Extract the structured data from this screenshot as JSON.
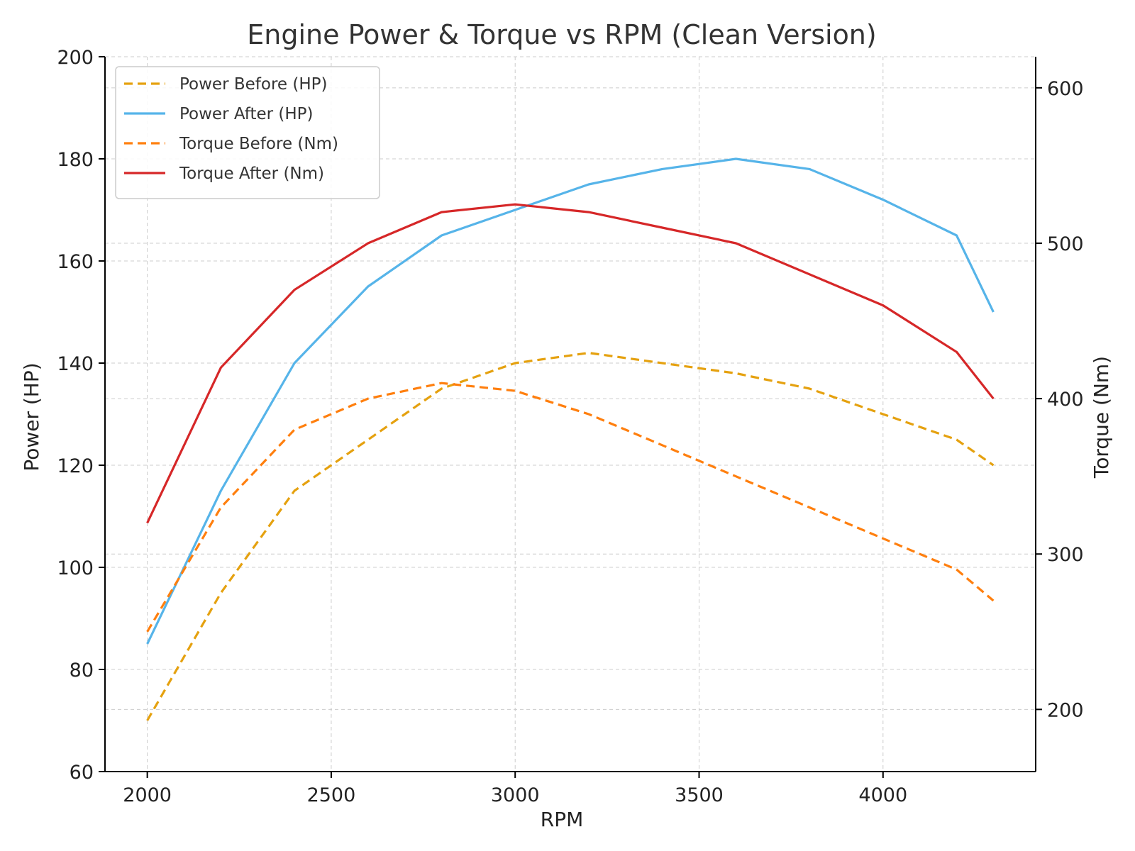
{
  "chart_data": {
    "type": "line",
    "title": "Engine Power & Torque vs RPM (Clean Version)",
    "xlabel": "RPM",
    "ylabel_left": "Power (HP)",
    "ylabel_right": "Torque (Nm)",
    "xlim": [
      1885,
      4415
    ],
    "ylim_left": [
      60,
      200
    ],
    "ylim_right": [
      160,
      620
    ],
    "x_ticks": [
      2000,
      2500,
      3000,
      3500,
      4000
    ],
    "y_left_ticks": [
      60,
      80,
      100,
      120,
      140,
      160,
      180,
      200
    ],
    "y_right_ticks": [
      200,
      300,
      400,
      500,
      600
    ],
    "grid": true,
    "legend_position": "top-left",
    "x": [
      2000,
      2200,
      2400,
      2600,
      2800,
      3000,
      3200,
      3400,
      3600,
      3800,
      4000,
      4200,
      4300
    ],
    "series": [
      {
        "name": "Power Before (HP)",
        "axis": "left",
        "color": "#e5a10f",
        "dashed": true,
        "values": [
          70,
          95,
          115,
          125,
          135,
          140,
          142,
          140,
          138,
          135,
          130,
          125,
          120
        ]
      },
      {
        "name": "Power After (HP)",
        "axis": "left",
        "color": "#56b4e9",
        "dashed": false,
        "values": [
          85,
          115,
          140,
          155,
          165,
          170,
          175,
          178,
          180,
          178,
          172,
          165,
          150
        ]
      },
      {
        "name": "Torque Before (Nm)",
        "axis": "right",
        "color": "#ff7f0e",
        "dashed": true,
        "values": [
          250,
          330,
          380,
          400,
          410,
          405,
          390,
          370,
          350,
          330,
          310,
          290,
          270
        ]
      },
      {
        "name": "Torque After (Nm)",
        "axis": "right",
        "color": "#d62728",
        "dashed": false,
        "values": [
          320,
          420,
          470,
          500,
          520,
          525,
          520,
          510,
          500,
          480,
          460,
          430,
          400
        ]
      }
    ]
  }
}
